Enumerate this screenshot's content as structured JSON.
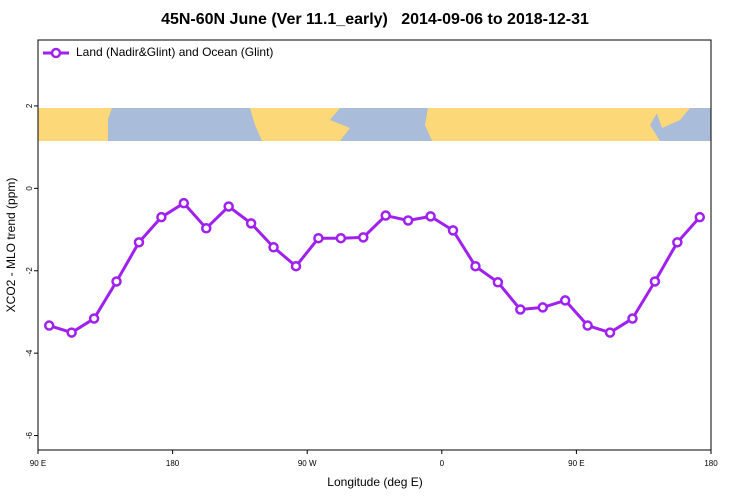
{
  "chart_data": {
    "type": "line",
    "title": "45N-60N June (Ver 11.1_early)   2014-09-06 to 2018-12-31",
    "xlabel": "Longitude (deg E)",
    "ylabel": "XCO2 - MLO trend (ppm)",
    "x": [
      97.5,
      112.5,
      127.5,
      142.5,
      157.5,
      172.5,
      187.5,
      202.5,
      217.5,
      232.5,
      247.5,
      262.5,
      277.5,
      292.5,
      307.5,
      322.5,
      337.5,
      352.5,
      367.5,
      382.5,
      397.5,
      412.5,
      427.5,
      442.5,
      457.5,
      472.5,
      487.5,
      502.5,
      517.5,
      532.5
    ],
    "series": [
      {
        "name": "Land (Nadir&Glint) and Ocean (Glint)",
        "color": "#a020f0",
        "values": [
          -3.33,
          -3.5,
          -3.16,
          -2.26,
          -1.31,
          -0.7,
          -0.36,
          -0.97,
          -0.44,
          -0.85,
          -1.43,
          -1.89,
          -1.21,
          -1.21,
          -1.19,
          -0.66,
          -0.78,
          -0.68,
          -1.02,
          -1.89,
          -2.28,
          -2.94,
          -2.89,
          -2.72,
          -3.33,
          -3.5,
          -3.16,
          -2.26,
          -1.31,
          -0.7
        ]
      }
    ],
    "xlim": [
      90,
      540
    ],
    "xticks": [
      {
        "value": 90,
        "label": "90 E"
      },
      {
        "value": 180,
        "label": "180"
      },
      {
        "value": 270,
        "label": "90 W"
      },
      {
        "value": 360,
        "label": "0"
      },
      {
        "value": 450,
        "label": "90 E"
      },
      {
        "value": 540,
        "label": "180"
      }
    ],
    "ylim": [
      -6.35,
      3.6
    ],
    "yticks": [
      2,
      0,
      -2,
      -4,
      -6
    ],
    "legend": "top-left"
  }
}
